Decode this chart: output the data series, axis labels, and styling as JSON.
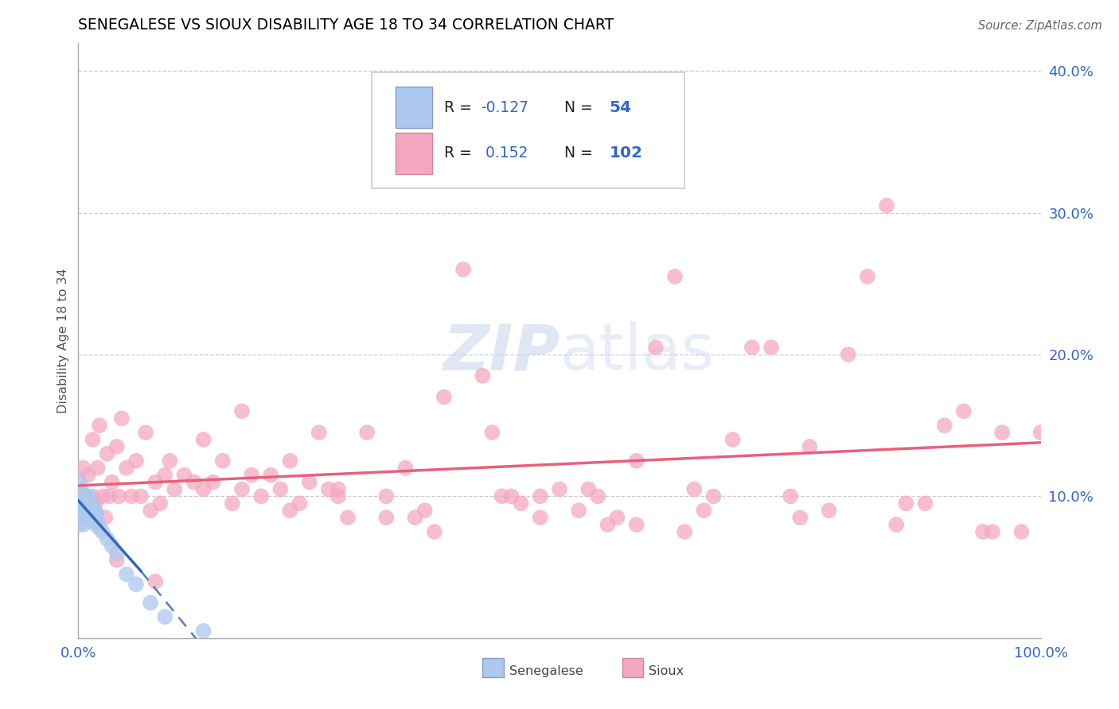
{
  "title": "SENEGALESE VS SIOUX DISABILITY AGE 18 TO 34 CORRELATION CHART",
  "source": "Source: ZipAtlas.com",
  "ylabel": "Disability Age 18 to 34",
  "xlim": [
    0.0,
    1.0
  ],
  "ylim": [
    0.0,
    0.42
  ],
  "x_ticks": [
    0.0,
    0.25,
    0.5,
    0.75,
    1.0
  ],
  "x_tick_labels": [
    "0.0%",
    "",
    "",
    "",
    "100.0%"
  ],
  "y_ticks": [
    0.0,
    0.1,
    0.2,
    0.3,
    0.4
  ],
  "y_tick_labels": [
    "",
    "10.0%",
    "20.0%",
    "30.0%",
    "40.0%"
  ],
  "senegalese_R": -0.127,
  "senegalese_N": 54,
  "sioux_R": 0.152,
  "sioux_N": 102,
  "senegalese_color": "#adc8ee",
  "sioux_color": "#f4a8bf",
  "senegalese_line_color": "#3366bb",
  "sioux_line_color": "#e8607a",
  "tick_color": "#3366cc",
  "grid_color": "#cccccc",
  "watermark_color": "#ccd8ee",
  "senegalese_x": [
    0.001,
    0.001,
    0.001,
    0.001,
    0.001,
    0.002,
    0.002,
    0.002,
    0.003,
    0.003,
    0.003,
    0.003,
    0.004,
    0.004,
    0.005,
    0.005,
    0.005,
    0.006,
    0.006,
    0.007,
    0.007,
    0.007,
    0.008,
    0.008,
    0.009,
    0.009,
    0.01,
    0.01,
    0.01,
    0.011,
    0.011,
    0.012,
    0.012,
    0.013,
    0.013,
    0.014,
    0.015,
    0.015,
    0.016,
    0.016,
    0.017,
    0.018,
    0.019,
    0.02,
    0.021,
    0.025,
    0.03,
    0.035,
    0.04,
    0.05,
    0.06,
    0.075,
    0.09,
    0.13
  ],
  "senegalese_y": [
    0.095,
    0.11,
    0.09,
    0.085,
    0.08,
    0.1,
    0.09,
    0.085,
    0.105,
    0.095,
    0.09,
    0.085,
    0.1,
    0.088,
    0.1,
    0.09,
    0.08,
    0.098,
    0.088,
    0.1,
    0.092,
    0.085,
    0.098,
    0.088,
    0.095,
    0.088,
    0.1,
    0.093,
    0.085,
    0.098,
    0.088,
    0.095,
    0.085,
    0.092,
    0.082,
    0.09,
    0.092,
    0.082,
    0.09,
    0.082,
    0.088,
    0.085,
    0.088,
    0.082,
    0.078,
    0.075,
    0.07,
    0.065,
    0.06,
    0.045,
    0.038,
    0.025,
    0.015,
    0.005
  ],
  "sioux_x": [
    0.005,
    0.008,
    0.01,
    0.012,
    0.015,
    0.015,
    0.018,
    0.02,
    0.022,
    0.025,
    0.028,
    0.03,
    0.032,
    0.035,
    0.04,
    0.042,
    0.045,
    0.05,
    0.055,
    0.06,
    0.065,
    0.07,
    0.075,
    0.08,
    0.085,
    0.09,
    0.095,
    0.1,
    0.11,
    0.12,
    0.13,
    0.14,
    0.15,
    0.16,
    0.17,
    0.18,
    0.19,
    0.2,
    0.21,
    0.22,
    0.23,
    0.24,
    0.25,
    0.26,
    0.27,
    0.28,
    0.3,
    0.32,
    0.34,
    0.36,
    0.38,
    0.4,
    0.42,
    0.44,
    0.46,
    0.48,
    0.5,
    0.52,
    0.54,
    0.56,
    0.58,
    0.6,
    0.62,
    0.64,
    0.66,
    0.68,
    0.7,
    0.72,
    0.74,
    0.76,
    0.78,
    0.8,
    0.82,
    0.84,
    0.86,
    0.88,
    0.9,
    0.92,
    0.94,
    0.96,
    0.98,
    1.0,
    0.35,
    0.45,
    0.55,
    0.65,
    0.75,
    0.85,
    0.95,
    0.04,
    0.08,
    0.13,
    0.17,
    0.22,
    0.27,
    0.32,
    0.37,
    0.43,
    0.48,
    0.53,
    0.58,
    0.63
  ],
  "sioux_y": [
    0.12,
    0.1,
    0.115,
    0.095,
    0.14,
    0.1,
    0.095,
    0.12,
    0.15,
    0.1,
    0.085,
    0.13,
    0.1,
    0.11,
    0.135,
    0.1,
    0.155,
    0.12,
    0.1,
    0.125,
    0.1,
    0.145,
    0.09,
    0.11,
    0.095,
    0.115,
    0.125,
    0.105,
    0.115,
    0.11,
    0.105,
    0.11,
    0.125,
    0.095,
    0.105,
    0.115,
    0.1,
    0.115,
    0.105,
    0.125,
    0.095,
    0.11,
    0.145,
    0.105,
    0.105,
    0.085,
    0.145,
    0.1,
    0.12,
    0.09,
    0.17,
    0.26,
    0.185,
    0.1,
    0.095,
    0.1,
    0.105,
    0.09,
    0.1,
    0.085,
    0.125,
    0.205,
    0.255,
    0.105,
    0.1,
    0.14,
    0.205,
    0.205,
    0.1,
    0.135,
    0.09,
    0.2,
    0.255,
    0.305,
    0.095,
    0.095,
    0.15,
    0.16,
    0.075,
    0.145,
    0.075,
    0.145,
    0.085,
    0.1,
    0.08,
    0.09,
    0.085,
    0.08,
    0.075,
    0.055,
    0.04,
    0.14,
    0.16,
    0.09,
    0.1,
    0.085,
    0.075,
    0.145,
    0.085,
    0.105,
    0.08,
    0.075
  ]
}
